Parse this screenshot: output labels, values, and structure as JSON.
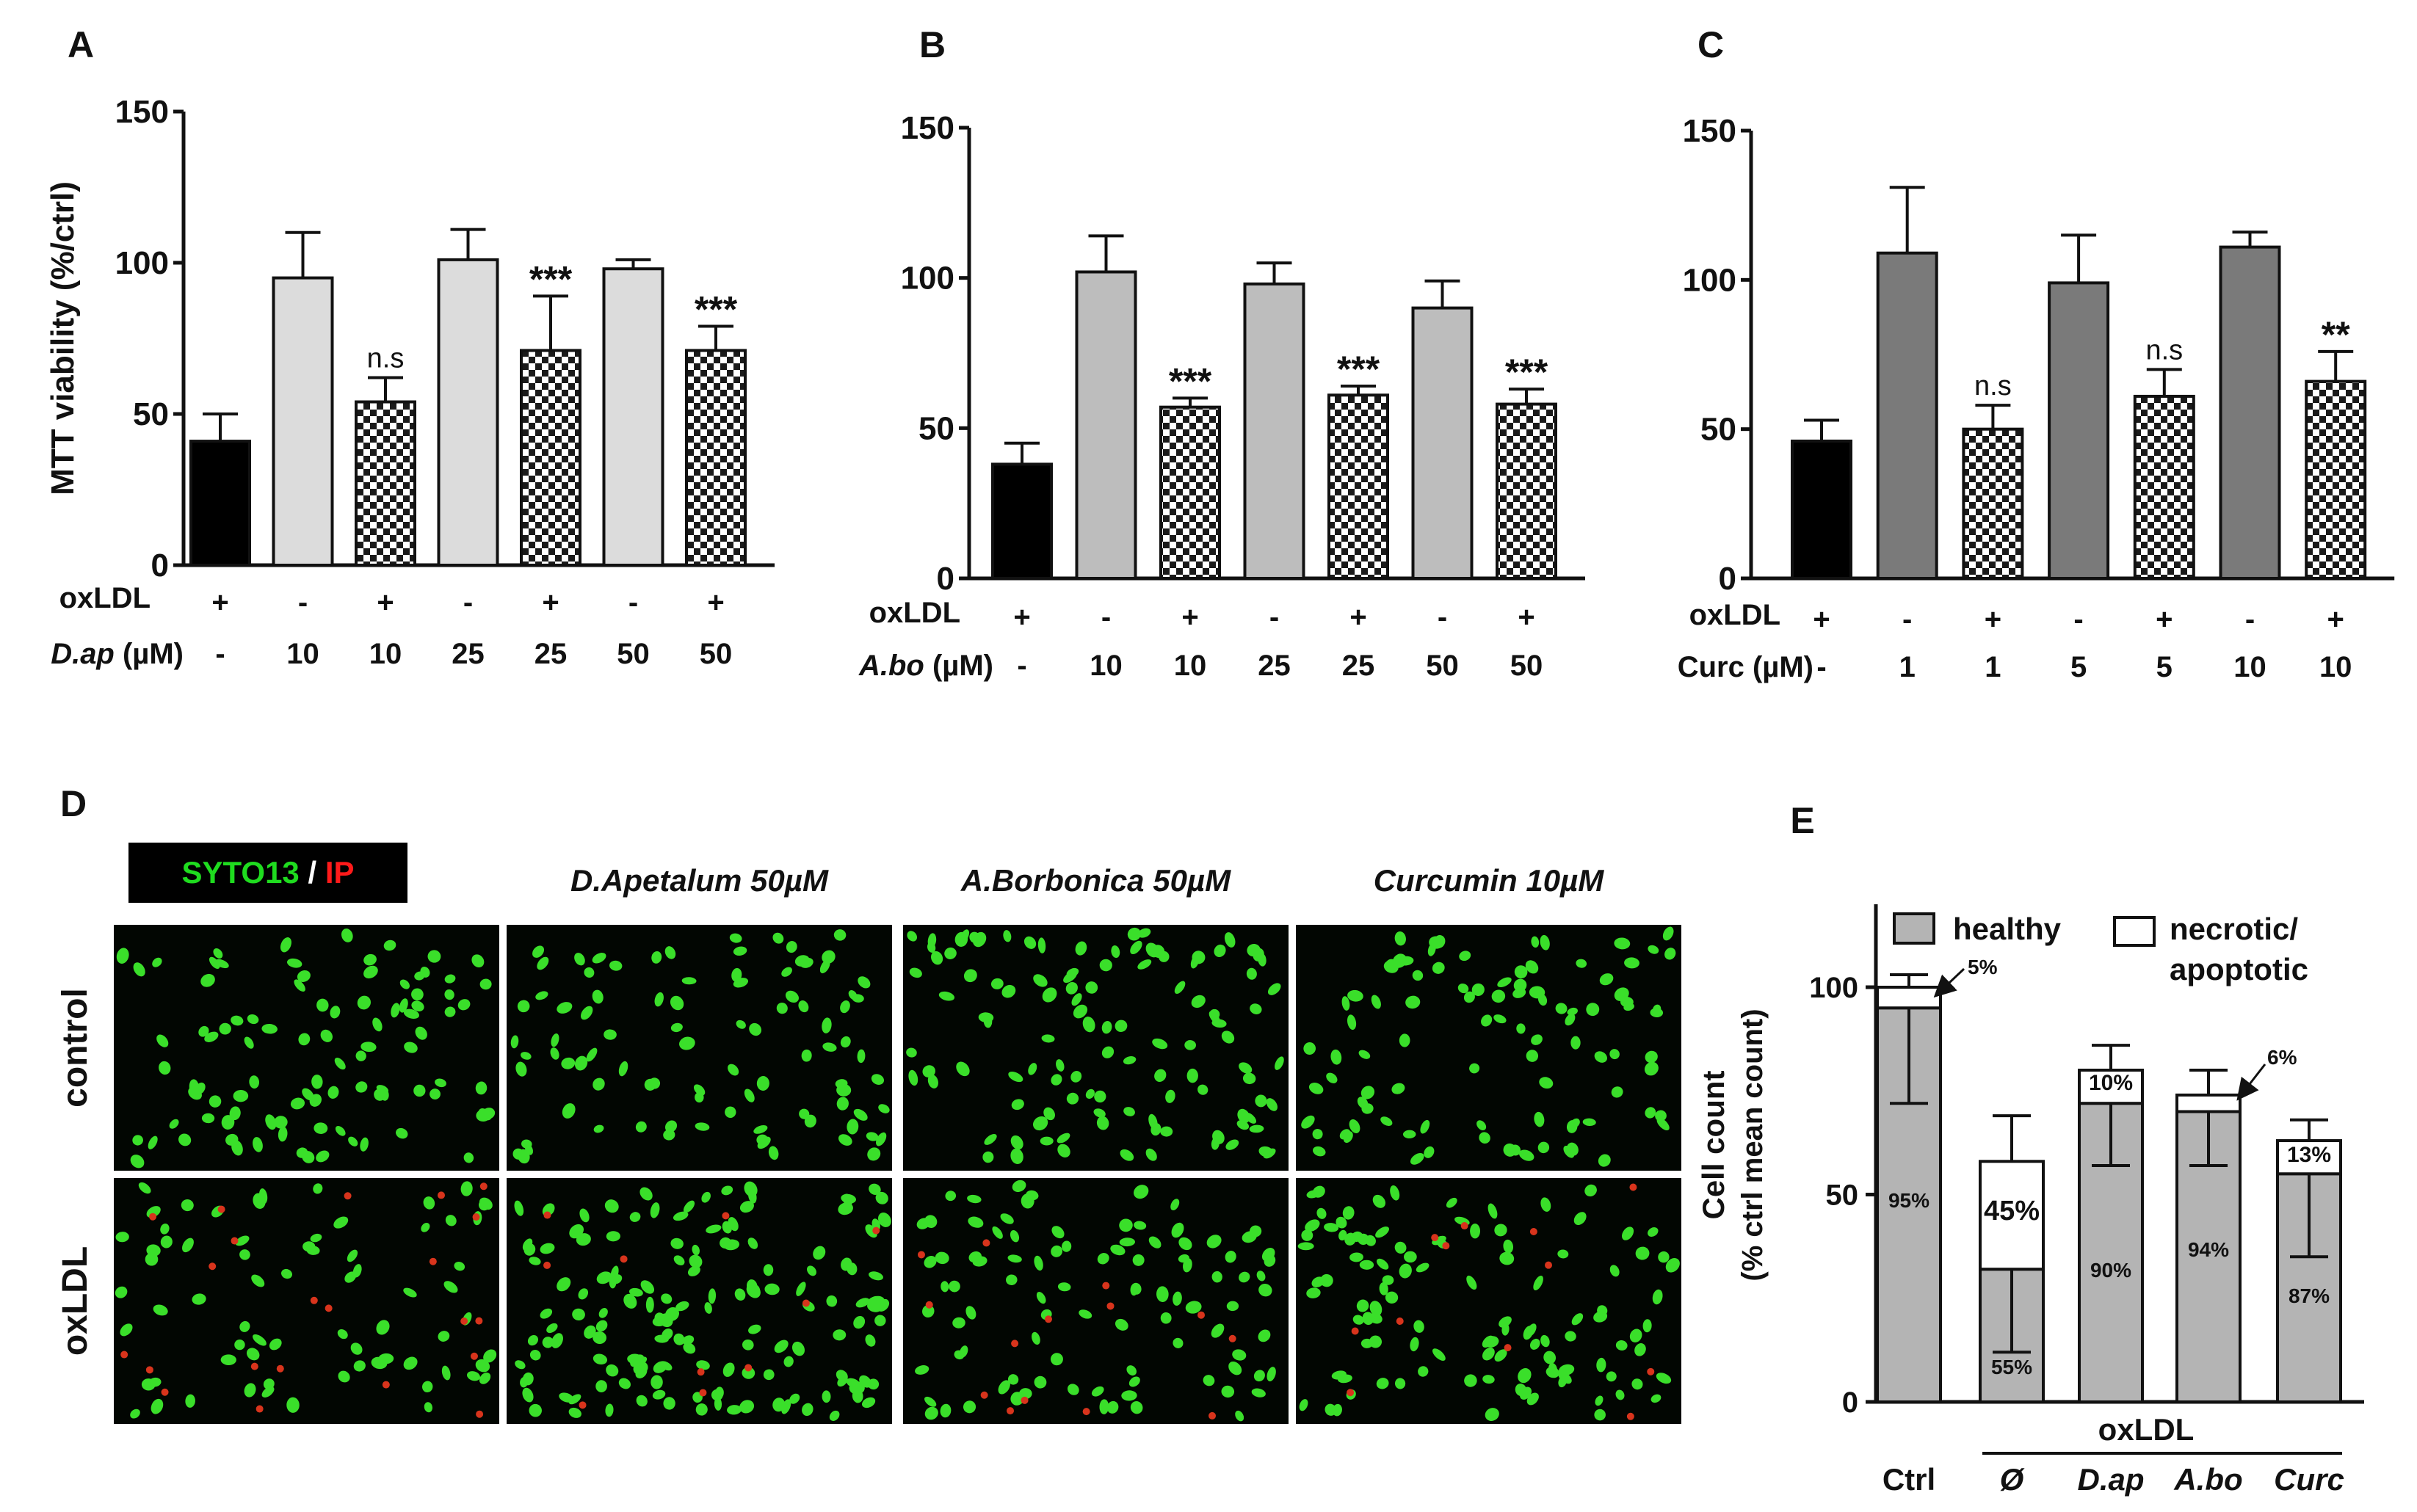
{
  "chart_data": [
    {
      "type": "bar",
      "panel": "A",
      "ylabel": "MTT viability (%/ctrl)",
      "ylim": [
        0,
        150
      ],
      "yticks": [
        "0",
        "50",
        "100",
        "150"
      ],
      "row_labels": [
        {
          "text": "oxLDL",
          "italic": false
        },
        {
          "text": "D.ap",
          "italic": true,
          "suffix": " (µM)"
        }
      ],
      "oxldl": [
        "+",
        "-",
        "+",
        "-",
        "+",
        "-",
        "+"
      ],
      "conc": [
        "-",
        "10",
        "10",
        "25",
        "25",
        "50",
        "50"
      ],
      "values": [
        41,
        95,
        54,
        101,
        71,
        98,
        71
      ],
      "errors": [
        9,
        15,
        8,
        10,
        18,
        3,
        8
      ],
      "fills": [
        "black",
        "light",
        "check",
        "light",
        "check",
        "light",
        "check"
      ],
      "annotations": [
        "",
        "",
        "n.s",
        "",
        "***",
        "",
        "***"
      ]
    },
    {
      "type": "bar",
      "panel": "B",
      "ylabel": "",
      "ylim": [
        0,
        150
      ],
      "yticks": [
        "0",
        "50",
        "100",
        "150"
      ],
      "row_labels": [
        {
          "text": "oxLDL",
          "italic": false
        },
        {
          "text": "A.bo",
          "italic": true,
          "suffix": " (µM)"
        }
      ],
      "oxldl": [
        "+",
        "-",
        "+",
        "-",
        "+",
        "-",
        "+"
      ],
      "conc": [
        "-",
        "10",
        "10",
        "25",
        "25",
        "50",
        "50"
      ],
      "values": [
        38,
        102,
        57,
        98,
        61,
        90,
        58
      ],
      "errors": [
        7,
        12,
        3,
        7,
        3,
        9,
        5
      ],
      "fills": [
        "black",
        "mid",
        "check",
        "mid",
        "check",
        "mid",
        "check"
      ],
      "annotations": [
        "",
        "",
        "***",
        "",
        "***",
        "",
        "***"
      ]
    },
    {
      "type": "bar",
      "panel": "C",
      "ylabel": "",
      "ylim": [
        0,
        150
      ],
      "yticks": [
        "0",
        "50",
        "100",
        "150"
      ],
      "row_labels": [
        {
          "text": "oxLDL",
          "italic": false
        },
        {
          "text": "Curc (µM)",
          "italic": false,
          "suffix": ""
        }
      ],
      "oxldl": [
        "+",
        "-",
        "+",
        "-",
        "+",
        "-",
        "+"
      ],
      "conc": [
        "-",
        "1",
        "1",
        "5",
        "5",
        "10",
        "10"
      ],
      "values": [
        46,
        109,
        50,
        99,
        61,
        111,
        66
      ],
      "errors": [
        7,
        22,
        8,
        16,
        9,
        5,
        10
      ],
      "fills": [
        "black",
        "dark",
        "check",
        "dark",
        "check",
        "dark",
        "check"
      ],
      "annotations": [
        "",
        "",
        "n.s",
        "",
        "n.s",
        "",
        "**"
      ]
    },
    {
      "type": "bar",
      "stacked": true,
      "panel": "E",
      "ylabel": "Cell count",
      "ylabel2": "(% ctrl mean count)",
      "ylim": [
        0,
        120
      ],
      "yticks": [
        "0",
        "50",
        "100"
      ],
      "legend": [
        "healthy",
        "necrotic/",
        "apoptotic"
      ],
      "group_label": "oxLDL",
      "categories": [
        "Ctrl",
        "Ø",
        "D.ap",
        "A.bo",
        "Curc"
      ],
      "series": [
        {
          "name": "healthy",
          "values": [
            95,
            32,
            72,
            70,
            55
          ]
        },
        {
          "name": "necrotic/apoptotic",
          "values": [
            5,
            26,
            8,
            4,
            8
          ]
        }
      ],
      "errors": [
        23,
        20,
        15,
        13,
        20
      ],
      "err_total": [
        3,
        11,
        6,
        6,
        5
      ],
      "healthy_labels": [
        "95%",
        "55%",
        "90%",
        "94%",
        "87%"
      ],
      "necrotic_labels": [
        "5%",
        "45%",
        "10%",
        "6%",
        "13%"
      ]
    }
  ],
  "panel_d": {
    "letter": "D",
    "stain_green": "SYTO13",
    "stain_sep": " / ",
    "stain_red": "IP",
    "columns": [
      "",
      "D.Apetalum 50µM",
      "A.Borbonica 50µM",
      "Curcumin 10µM"
    ],
    "rows": [
      "control",
      "oxLDL"
    ],
    "colors": {
      "green": "#3adf2a",
      "red": "#d8341c",
      "label_red": "#ff1a1a",
      "label_green": "#1fdc1f"
    }
  }
}
